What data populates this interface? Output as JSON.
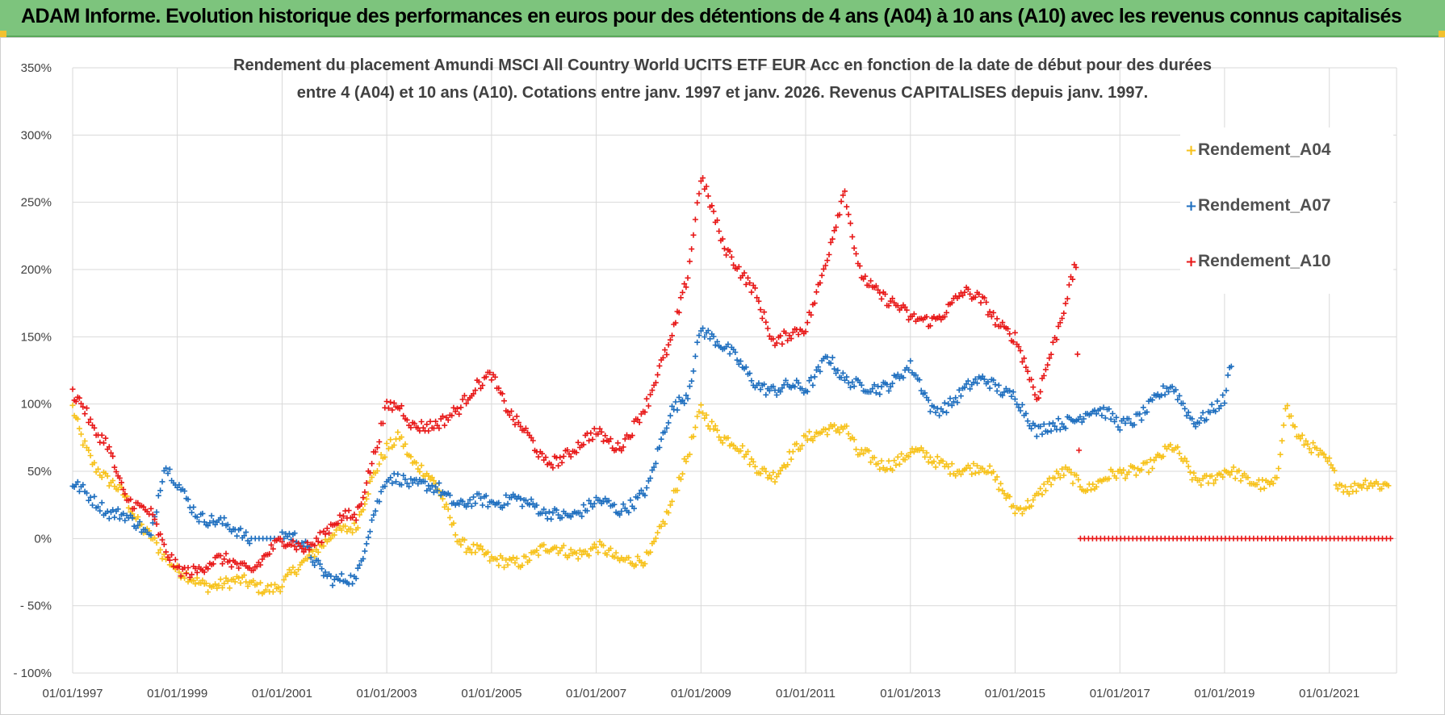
{
  "header": {
    "title": "ADAM Informe. Evolution historique des performances en euros pour des détentions de 4 ans (A04) à 10 ans (A10) avec les revenus connus capitalisés"
  },
  "colors": {
    "header_bg": "#7dc47d",
    "A04": "#f7c21b",
    "A07": "#1f6fbf",
    "A10": "#e81818"
  },
  "chart_data": {
    "type": "scatter",
    "marker": "plus",
    "title_line1": "Rendement du placement Amundi MSCI All Country World UCITS ETF EUR Acc en fonction de la date de début pour des durées",
    "title_line2": "entre 4 (A04) et 10 ans (A10).  Cotations entre janv. 1997 et janv. 2026.  Revenus CAPITALISES  depuis janv. 1997.",
    "ylim": [
      -100,
      350
    ],
    "y_ticks": [
      "- 100%",
      "- 50%",
      "0%",
      "50%",
      "100%",
      "150%",
      "200%",
      "250%",
      "300%",
      "350%"
    ],
    "x_range": [
      "1997-01-01",
      "2022-04-15"
    ],
    "x_ticks": [
      "01/01/1997",
      "01/01/1999",
      "01/01/2001",
      "01/01/2003",
      "01/01/2005",
      "01/01/2007",
      "01/01/2009",
      "01/01/2011",
      "01/01/2013",
      "01/01/2015",
      "01/01/2017",
      "01/01/2019",
      "01/01/2021"
    ],
    "grid": true,
    "legend_position": "top-right",
    "series": [
      {
        "name": "Rendement_A04",
        "color": "#f7c21b",
        "points": [
          [
            "1997-01",
            100
          ],
          [
            "1997-03",
            80
          ],
          [
            "1997-06",
            55
          ],
          [
            "1997-09",
            40
          ],
          [
            "1998-01",
            30
          ],
          [
            "1998-04",
            15
          ],
          [
            "1998-07",
            5
          ],
          [
            "1998-10",
            -15
          ],
          [
            "1999-01",
            -28
          ],
          [
            "1999-06",
            -30
          ],
          [
            "2000-01",
            -35
          ],
          [
            "2000-06",
            -35
          ],
          [
            "2001-01",
            -33
          ],
          [
            "2001-06",
            -22
          ],
          [
            "2002-01",
            10
          ],
          [
            "2002-06",
            5
          ],
          [
            "2002-10",
            45
          ],
          [
            "2003-01",
            70
          ],
          [
            "2003-04",
            80
          ],
          [
            "2003-07",
            55
          ],
          [
            "2004-01",
            35
          ],
          [
            "2004-06",
            0
          ],
          [
            "2005-01",
            -20
          ],
          [
            "2005-06",
            -15
          ],
          [
            "2006-01",
            -10
          ],
          [
            "2006-06",
            -10
          ],
          [
            "2007-01",
            -5
          ],
          [
            "2007-06",
            -20
          ],
          [
            "2008-01",
            -10
          ],
          [
            "2008-06",
            20
          ],
          [
            "2008-10",
            60
          ],
          [
            "2009-01",
            100
          ],
          [
            "2009-06",
            75
          ],
          [
            "2010-01",
            55
          ],
          [
            "2010-06",
            50
          ],
          [
            "2011-01",
            70
          ],
          [
            "2011-06",
            85
          ],
          [
            "2011-10",
            85
          ],
          [
            "2012-01",
            60
          ],
          [
            "2012-06",
            55
          ],
          [
            "2013-01",
            65
          ],
          [
            "2013-06",
            55
          ],
          [
            "2014-01",
            55
          ],
          [
            "2014-06",
            50
          ],
          [
            "2015-01",
            25
          ],
          [
            "2015-06",
            30
          ],
          [
            "2016-01",
            50
          ],
          [
            "2016-06",
            40
          ],
          [
            "2017-01",
            45
          ],
          [
            "2017-06",
            55
          ],
          [
            "2018-01",
            65
          ],
          [
            "2018-06",
            45
          ],
          [
            "2019-01",
            50
          ],
          [
            "2019-06",
            40
          ],
          [
            "2020-01",
            45
          ],
          [
            "2020-03",
            100
          ],
          [
            "2020-06",
            70
          ],
          [
            "2021-01",
            60
          ],
          [
            "2021-03",
            45
          ],
          [
            "2021-06",
            35
          ],
          [
            "2022-01",
            40
          ],
          [
            "2022-03",
            45
          ]
        ]
      },
      {
        "name": "Rendement_A07",
        "color": "#1f6fbf",
        "points": [
          [
            "1997-01",
            45
          ],
          [
            "1997-03",
            40
          ],
          [
            "1997-06",
            25
          ],
          [
            "1997-09",
            15
          ],
          [
            "1998-01",
            20
          ],
          [
            "1998-04",
            15
          ],
          [
            "1998-07",
            0
          ],
          [
            "1998-10",
            50
          ],
          [
            "1999-01",
            40
          ],
          [
            "1999-06",
            20
          ],
          [
            "2000-01",
            5
          ],
          [
            "2000-06",
            0
          ],
          [
            "2001-01",
            0
          ],
          [
            "2001-06",
            -5
          ],
          [
            "2002-01",
            -30
          ],
          [
            "2002-06",
            -35
          ],
          [
            "2002-10",
            20
          ],
          [
            "2003-01",
            50
          ],
          [
            "2003-04",
            45
          ],
          [
            "2003-07",
            35
          ],
          [
            "2004-01",
            40
          ],
          [
            "2004-06",
            25
          ],
          [
            "2005-01",
            25
          ],
          [
            "2005-06",
            35
          ],
          [
            "2006-01",
            15
          ],
          [
            "2006-06",
            20
          ],
          [
            "2007-01",
            25
          ],
          [
            "2007-06",
            20
          ],
          [
            "2008-01",
            40
          ],
          [
            "2008-06",
            90
          ],
          [
            "2008-10",
            110
          ],
          [
            "2009-01",
            160
          ],
          [
            "2009-06",
            140
          ],
          [
            "2010-01",
            120
          ],
          [
            "2010-06",
            110
          ],
          [
            "2011-01",
            110
          ],
          [
            "2011-06",
            140
          ],
          [
            "2011-10",
            115
          ],
          [
            "2012-01",
            110
          ],
          [
            "2012-06",
            115
          ],
          [
            "2013-01",
            125
          ],
          [
            "2013-06",
            95
          ],
          [
            "2014-01",
            110
          ],
          [
            "2014-06",
            115
          ],
          [
            "2015-01",
            110
          ],
          [
            "2015-06",
            75
          ],
          [
            "2016-01",
            90
          ],
          [
            "2016-06",
            95
          ],
          [
            "2017-01",
            85
          ],
          [
            "2017-06",
            95
          ],
          [
            "2018-01",
            110
          ],
          [
            "2018-06",
            90
          ],
          [
            "2019-01",
            100
          ],
          [
            "2019-03",
            135
          ]
        ]
      },
      {
        "name": "Rendement_A10",
        "color": "#e81818",
        "points": [
          [
            "1997-01",
            110
          ],
          [
            "1997-03",
            100
          ],
          [
            "1997-06",
            75
          ],
          [
            "1997-09",
            70
          ],
          [
            "1998-01",
            35
          ],
          [
            "1998-04",
            25
          ],
          [
            "1998-07",
            15
          ],
          [
            "1998-10",
            -10
          ],
          [
            "1999-01",
            -20
          ],
          [
            "1999-06",
            -22
          ],
          [
            "2000-01",
            -18
          ],
          [
            "2000-06",
            -20
          ],
          [
            "2001-01",
            -5
          ],
          [
            "2001-06",
            -5
          ],
          [
            "2002-01",
            10
          ],
          [
            "2002-06",
            15
          ],
          [
            "2002-10",
            65
          ],
          [
            "2003-01",
            100
          ],
          [
            "2003-04",
            95
          ],
          [
            "2003-07",
            80
          ],
          [
            "2004-01",
            90
          ],
          [
            "2004-06",
            95
          ],
          [
            "2005-01",
            125
          ],
          [
            "2005-06",
            90
          ],
          [
            "2006-01",
            55
          ],
          [
            "2006-06",
            65
          ],
          [
            "2007-01",
            75
          ],
          [
            "2007-06",
            70
          ],
          [
            "2008-01",
            100
          ],
          [
            "2008-06",
            145
          ],
          [
            "2008-10",
            200
          ],
          [
            "2009-01",
            270
          ],
          [
            "2009-06",
            215
          ],
          [
            "2010-01",
            190
          ],
          [
            "2010-06",
            140
          ],
          [
            "2011-01",
            160
          ],
          [
            "2011-06",
            210
          ],
          [
            "2011-10",
            255
          ],
          [
            "2012-01",
            200
          ],
          [
            "2012-06",
            185
          ],
          [
            "2013-01",
            160
          ],
          [
            "2013-06",
            165
          ],
          [
            "2014-01",
            180
          ],
          [
            "2014-06",
            175
          ],
          [
            "2015-01",
            150
          ],
          [
            "2015-06",
            100
          ],
          [
            "2016-01",
            185
          ],
          [
            "2016-03",
            205
          ],
          [
            "2016-04",
            0
          ],
          [
            "2022-04",
            0
          ]
        ]
      }
    ]
  }
}
